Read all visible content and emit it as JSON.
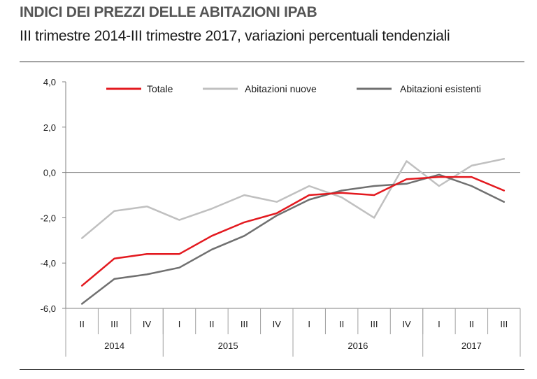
{
  "header": {
    "title": "INDICI DEI PREZZI DELLE ABITAZIONI IPAB",
    "subtitle": "III trimestre 2014-III trimestre 2017, variazioni percentuali tendenziali"
  },
  "chart_data": {
    "type": "line",
    "title": "INDICI DEI PREZZI DELLE ABITAZIONI IPAB",
    "subtitle": "III trimestre 2014-III trimestre 2017, variazioni percentuali tendenziali",
    "xlabel": "",
    "ylabel": "",
    "ylim": [
      -6,
      4
    ],
    "yticks": [
      4,
      2,
      0,
      -2,
      -4,
      -6
    ],
    "ytick_labels": [
      "4,0",
      "2,0",
      "0,0",
      "-2,0",
      "-4,0",
      "-6,0"
    ],
    "quarters": [
      "II",
      "III",
      "IV",
      "I",
      "II",
      "III",
      "IV",
      "I",
      "II",
      "III",
      "IV",
      "I",
      "II",
      "III"
    ],
    "years": [
      {
        "label": "2014",
        "start": 0,
        "end": 2
      },
      {
        "label": "2015",
        "start": 3,
        "end": 6
      },
      {
        "label": "2016",
        "start": 7,
        "end": 10
      },
      {
        "label": "2017",
        "start": 11,
        "end": 13
      }
    ],
    "legend_position": "top",
    "series": [
      {
        "name": "Totale",
        "color": "#e3191f",
        "width": 2.5,
        "values": [
          -5.0,
          -3.8,
          -3.6,
          -3.6,
          -2.8,
          -2.2,
          -1.8,
          -1.0,
          -0.9,
          -1.0,
          -0.3,
          -0.2,
          -0.2,
          -0.8
        ]
      },
      {
        "name": "Abitazioni nuove",
        "color": "#c0c0c0",
        "width": 2.5,
        "values": [
          -2.9,
          -1.7,
          -1.5,
          -2.1,
          -1.6,
          -1.0,
          -1.3,
          -0.6,
          -1.1,
          -2.0,
          0.5,
          -0.6,
          0.3,
          0.6
        ]
      },
      {
        "name": "Abitazioni esistenti",
        "color": "#707070",
        "width": 2.5,
        "values": [
          -5.8,
          -4.7,
          -4.5,
          -4.2,
          -3.4,
          -2.8,
          -1.9,
          -1.2,
          -0.8,
          -0.6,
          -0.5,
          -0.1,
          -0.6,
          -1.3
        ]
      }
    ]
  }
}
